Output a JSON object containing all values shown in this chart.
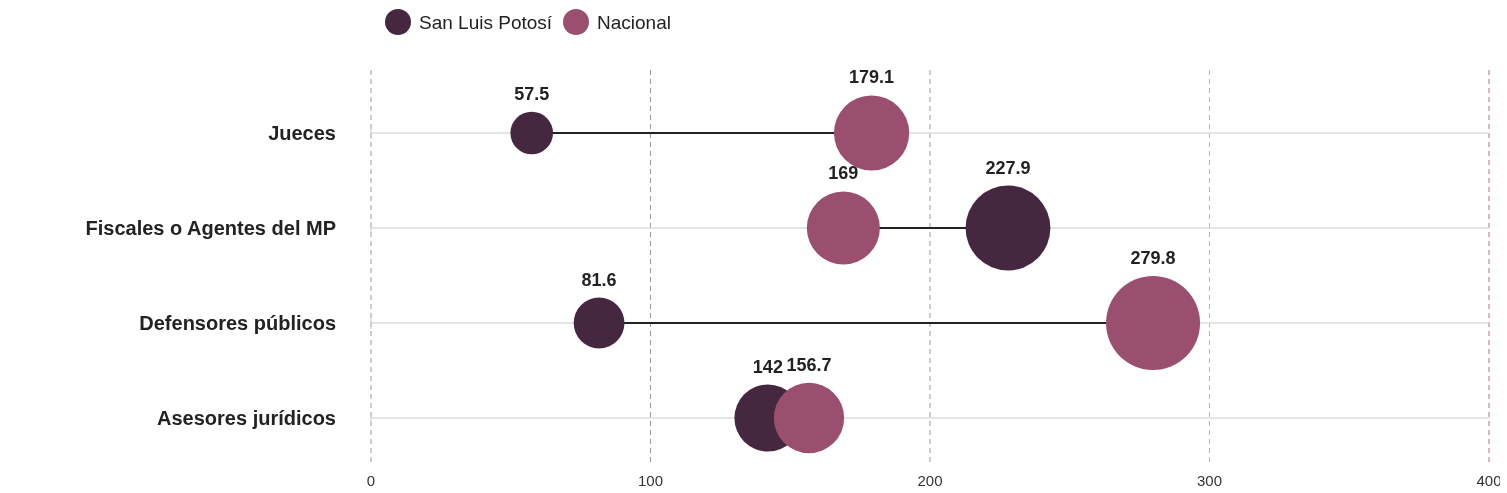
{
  "chart_data": {
    "type": "bubble",
    "orientation": "horizontal",
    "categories": [
      "Jueces",
      "Fiscales o Agentes del MP",
      "Defensores públicos",
      "Asesores jurídicos"
    ],
    "series": [
      {
        "name": "San Luis Potosí",
        "color": "#45283f",
        "values": [
          57.5,
          227.9,
          81.6,
          142
        ],
        "sizes": [
          0.2055,
          0.8145,
          0.2916,
          0.5075
        ]
      },
      {
        "name": "Nacional",
        "color": "#9a4f6e",
        "values": [
          179.1,
          169,
          279.8,
          156.7
        ],
        "sizes": [
          0.64,
          0.604,
          1,
          0.56
        ]
      }
    ],
    "xlim": [
      0,
      400
    ],
    "xticks": [
      0,
      100,
      200,
      300,
      400
    ],
    "grid": "x",
    "legend": "top left",
    "data_labels": true,
    "ref_lines": [
      {
        "axis": "x",
        "value": 300,
        "color": "#e8a0b4",
        "line_style": "dashed"
      },
      {
        "axis": "x",
        "value": 400,
        "color": "#e8a0b4",
        "line_style": "dashed"
      }
    ]
  }
}
